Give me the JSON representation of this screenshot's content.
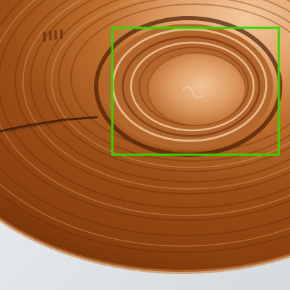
{
  "image": {
    "subject": "copper-coil-closeup",
    "colors": {
      "background": "#dfe3e6",
      "copper_dark": "#6e2f08",
      "copper_mid": "#b8662a",
      "copper_light": "#e9b07d",
      "highlight": "#f6d3ae",
      "scratch": "#3a1a08"
    }
  },
  "annotation": {
    "label": "",
    "box_color": "#34d400"
  }
}
